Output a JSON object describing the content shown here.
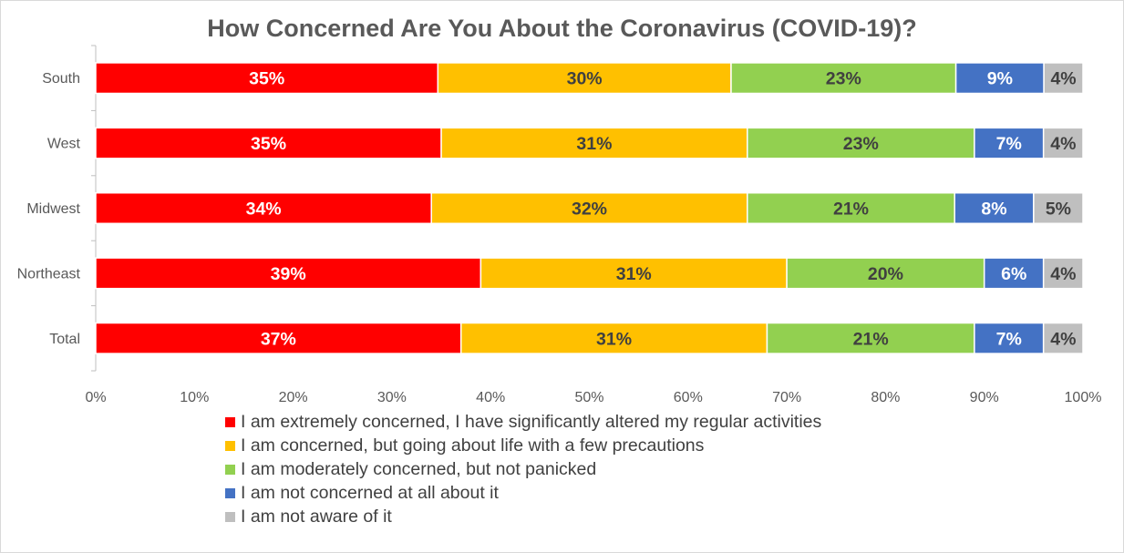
{
  "chart_data": {
    "type": "bar",
    "orientation": "horizontal",
    "stacked": "percent",
    "title": "How Concerned Are You About the Coronavirus (COVID-19)?",
    "xlabel": "",
    "ylabel": "",
    "xlim": [
      0,
      100
    ],
    "x_ticks": [
      "0%",
      "10%",
      "20%",
      "30%",
      "40%",
      "50%",
      "60%",
      "70%",
      "80%",
      "90%",
      "100%"
    ],
    "grid": false,
    "legend_position": "bottom",
    "categories": [
      "South",
      "West",
      "Midwest",
      "Northeast",
      "Total"
    ],
    "series": [
      {
        "name": "I am extremely concerned, I have significantly altered my regular activities",
        "color": "#ff0000",
        "label_color": "#ffffff",
        "values": [
          35,
          35,
          34,
          39,
          37
        ]
      },
      {
        "name": "I am concerned, but going about life with a few precautions",
        "color": "#ffc000",
        "label_color": "#404040",
        "values": [
          30,
          31,
          32,
          31,
          31
        ]
      },
      {
        "name": "I am moderately concerned, but not panicked",
        "color": "#92d050",
        "label_color": "#404040",
        "values": [
          23,
          23,
          21,
          20,
          21
        ]
      },
      {
        "name": "I am not concerned at all about it",
        "color": "#4472c4",
        "label_color": "#ffffff",
        "values": [
          9,
          7,
          8,
          6,
          7
        ]
      },
      {
        "name": "I am not aware of it",
        "color": "#bfbfbf",
        "label_color": "#404040",
        "values": [
          4,
          4,
          5,
          4,
          4
        ]
      }
    ]
  }
}
